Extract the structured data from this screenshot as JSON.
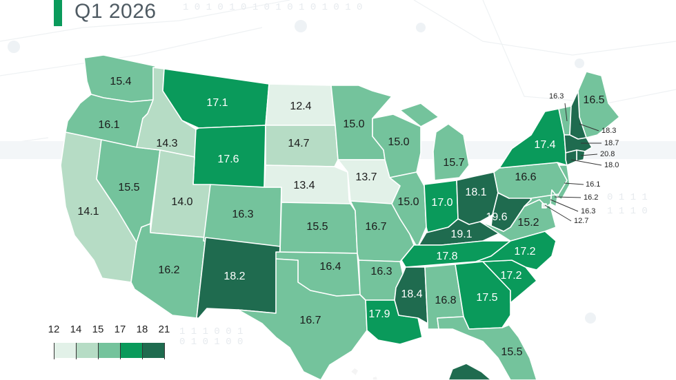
{
  "title": "Q1 2026",
  "legend": {
    "ticks": [
      "12",
      "14",
      "15",
      "17",
      "18",
      "21"
    ],
    "colors": [
      "#e2f1e8",
      "#b6dcc5",
      "#74c39c",
      "#0a9a5b",
      "#1f6b4f"
    ]
  },
  "states": [
    {
      "id": "WA",
      "value": "15.4"
    },
    {
      "id": "OR",
      "value": "16.1"
    },
    {
      "id": "CA",
      "value": "14.1"
    },
    {
      "id": "NV",
      "value": "15.5"
    },
    {
      "id": "ID",
      "value": "14.3"
    },
    {
      "id": "MT",
      "value": "17.1"
    },
    {
      "id": "WY",
      "value": "17.6"
    },
    {
      "id": "UT",
      "value": "14.0"
    },
    {
      "id": "AZ",
      "value": "16.2"
    },
    {
      "id": "CO",
      "value": "16.3"
    },
    {
      "id": "NM",
      "value": "18.2"
    },
    {
      "id": "ND",
      "value": "12.4"
    },
    {
      "id": "SD",
      "value": "14.7"
    },
    {
      "id": "NE",
      "value": "13.4"
    },
    {
      "id": "KS",
      "value": "15.5"
    },
    {
      "id": "OK",
      "value": "16.4"
    },
    {
      "id": "TX",
      "value": "16.7"
    },
    {
      "id": "MN",
      "value": "15.0"
    },
    {
      "id": "IA",
      "value": "13.7"
    },
    {
      "id": "MO",
      "value": "16.7"
    },
    {
      "id": "AR",
      "value": "16.3"
    },
    {
      "id": "LA",
      "value": "17.9"
    },
    {
      "id": "WI",
      "value": "15.0"
    },
    {
      "id": "IL",
      "value": "15.0"
    },
    {
      "id": "MI",
      "value": "15.7"
    },
    {
      "id": "IN",
      "value": "17.0"
    },
    {
      "id": "OH",
      "value": "18.1"
    },
    {
      "id": "KY",
      "value": "19.1"
    },
    {
      "id": "TN",
      "value": "17.8"
    },
    {
      "id": "MS",
      "value": "18.4"
    },
    {
      "id": "AL",
      "value": "16.8"
    },
    {
      "id": "GA",
      "value": "17.5"
    },
    {
      "id": "FL",
      "value": "15.5"
    },
    {
      "id": "SC",
      "value": "17.2"
    },
    {
      "id": "NC",
      "value": "17.2"
    },
    {
      "id": "VA",
      "value": "15.2"
    },
    {
      "id": "WV",
      "value": "19.6"
    },
    {
      "id": "PA",
      "value": "16.6"
    },
    {
      "id": "NY",
      "value": "17.4"
    },
    {
      "id": "ME",
      "value": "16.5"
    },
    {
      "id": "VT",
      "value": "16.3"
    },
    {
      "id": "NH",
      "value": "18.3"
    },
    {
      "id": "MA",
      "value": "18.7"
    },
    {
      "id": "RI",
      "value": "20.8"
    },
    {
      "id": "CT",
      "value": "18.0"
    },
    {
      "id": "NJ",
      "value": "16.1"
    },
    {
      "id": "DE",
      "value": "16.2"
    },
    {
      "id": "MD",
      "value": "16.3"
    },
    {
      "id": "DC",
      "value": "12.7"
    }
  ]
}
